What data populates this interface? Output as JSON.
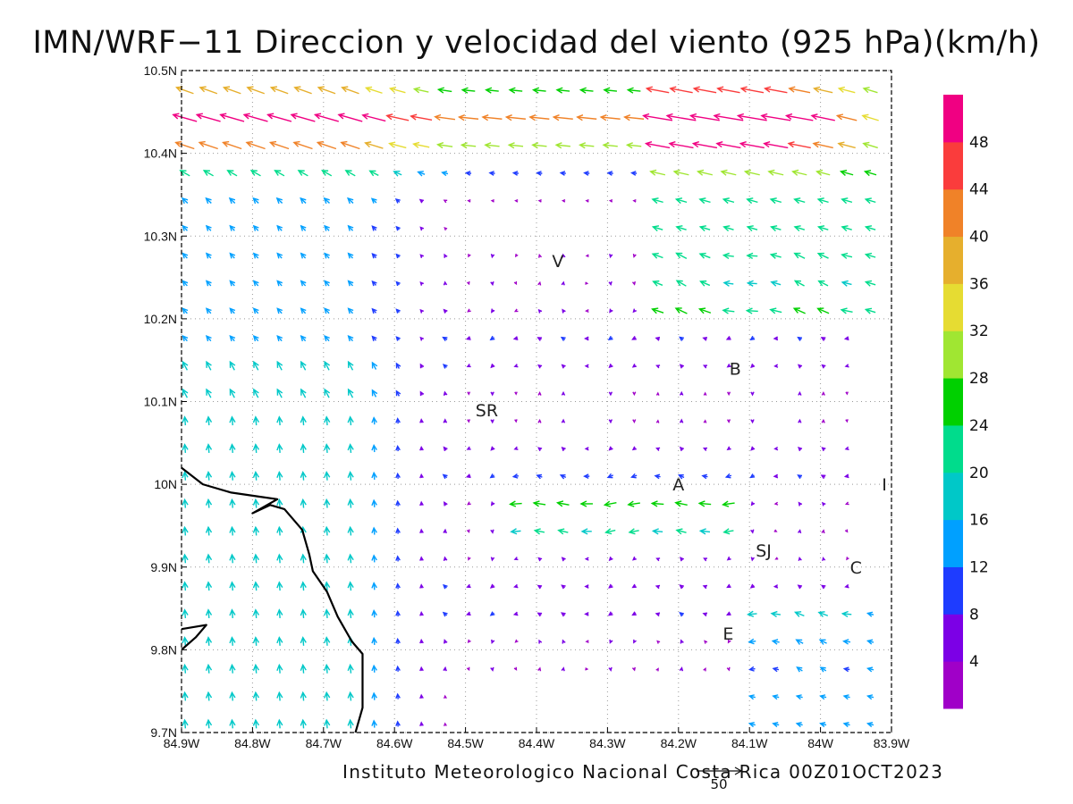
{
  "title": "IMN/WRF−11 Direccion y velocidad del viento (925 hPa)(km/h)",
  "credit": "Instituto Meteorologico Nacional Costa Rica 00Z01OCT2023",
  "map": {
    "lon_range": [
      -84.9,
      -83.9
    ],
    "lat_range": [
      9.7,
      10.5
    ],
    "lon_ticks": [
      {
        "v": -84.9,
        "label": "84.9W"
      },
      {
        "v": -84.8,
        "label": "84.8W"
      },
      {
        "v": -84.7,
        "label": "84.7W"
      },
      {
        "v": -84.6,
        "label": "84.6W"
      },
      {
        "v": -84.5,
        "label": "84.5W"
      },
      {
        "v": -84.4,
        "label": "84.4W"
      },
      {
        "v": -84.3,
        "label": "84.3W"
      },
      {
        "v": -84.2,
        "label": "84.2W"
      },
      {
        "v": -84.1,
        "label": "84.1W"
      },
      {
        "v": -84.0,
        "label": "84W"
      },
      {
        "v": -83.9,
        "label": "83.9W"
      }
    ],
    "lat_ticks": [
      {
        "v": 9.7,
        "label": "9.7N"
      },
      {
        "v": 9.8,
        "label": "9.8N"
      },
      {
        "v": 9.9,
        "label": "9.9N"
      },
      {
        "v": 10.0,
        "label": "10N"
      },
      {
        "v": 10.1,
        "label": "10.1N"
      },
      {
        "v": 10.2,
        "label": "10.2N"
      },
      {
        "v": 10.3,
        "label": "10.3N"
      },
      {
        "v": 10.4,
        "label": "10.4N"
      },
      {
        "v": 10.5,
        "label": "10.5N"
      }
    ],
    "grid": true,
    "cities": [
      {
        "label": "V",
        "lon": -84.37,
        "lat": 10.27
      },
      {
        "label": "B",
        "lon": -84.12,
        "lat": 10.14
      },
      {
        "label": "SR",
        "lon": -84.47,
        "lat": 10.09
      },
      {
        "label": "A",
        "lon": -84.2,
        "lat": 10.0
      },
      {
        "label": "I",
        "lon": -83.91,
        "lat": 10.0
      },
      {
        "label": "SJ",
        "lon": -84.08,
        "lat": 9.92
      },
      {
        "label": "C",
        "lon": -83.95,
        "lat": 9.9
      },
      {
        "label": "E",
        "lon": -84.13,
        "lat": 9.82
      }
    ],
    "coastline": [
      [
        [
          -84.9,
          10.02
        ],
        [
          -84.87,
          10.0
        ],
        [
          -84.83,
          9.99
        ],
        [
          -84.79,
          9.985
        ],
        [
          -84.765,
          9.982
        ],
        [
          -84.8,
          9.965
        ],
        [
          -84.775,
          9.975
        ],
        [
          -84.755,
          9.97
        ],
        [
          -84.73,
          9.945
        ],
        [
          -84.72,
          9.915
        ],
        [
          -84.715,
          9.895
        ],
        [
          -84.695,
          9.87
        ],
        [
          -84.68,
          9.84
        ],
        [
          -84.66,
          9.81
        ],
        [
          -84.645,
          9.795
        ],
        [
          -84.645,
          9.73
        ],
        [
          -84.655,
          9.7
        ]
      ],
      [
        [
          -84.9,
          9.8
        ],
        [
          -84.88,
          9.815
        ],
        [
          -84.865,
          9.83
        ],
        [
          -84.9,
          9.825
        ]
      ]
    ]
  },
  "colorbar": {
    "levels": [
      4,
      8,
      12,
      16,
      20,
      24,
      28,
      32,
      36,
      40,
      44,
      48
    ],
    "colors": [
      "#a000c8",
      "#7c00e6",
      "#1e3cff",
      "#00a0ff",
      "#00c8c8",
      "#00dc8c",
      "#00d000",
      "#a0e632",
      "#e6dc32",
      "#e6af2d",
      "#f08228",
      "#fa3c3c",
      "#f00082"
    ]
  },
  "reference_vector": {
    "value": "50",
    "unit": "km/h"
  },
  "wind_field": {
    "description_of_regions": "jet_north_orange; easterly_band_lat_9.95; southerly_west_cyan",
    "arrow_spacing_deg_lon": 0.0333,
    "arrow_spacing_deg_lat": 0.0333
  }
}
